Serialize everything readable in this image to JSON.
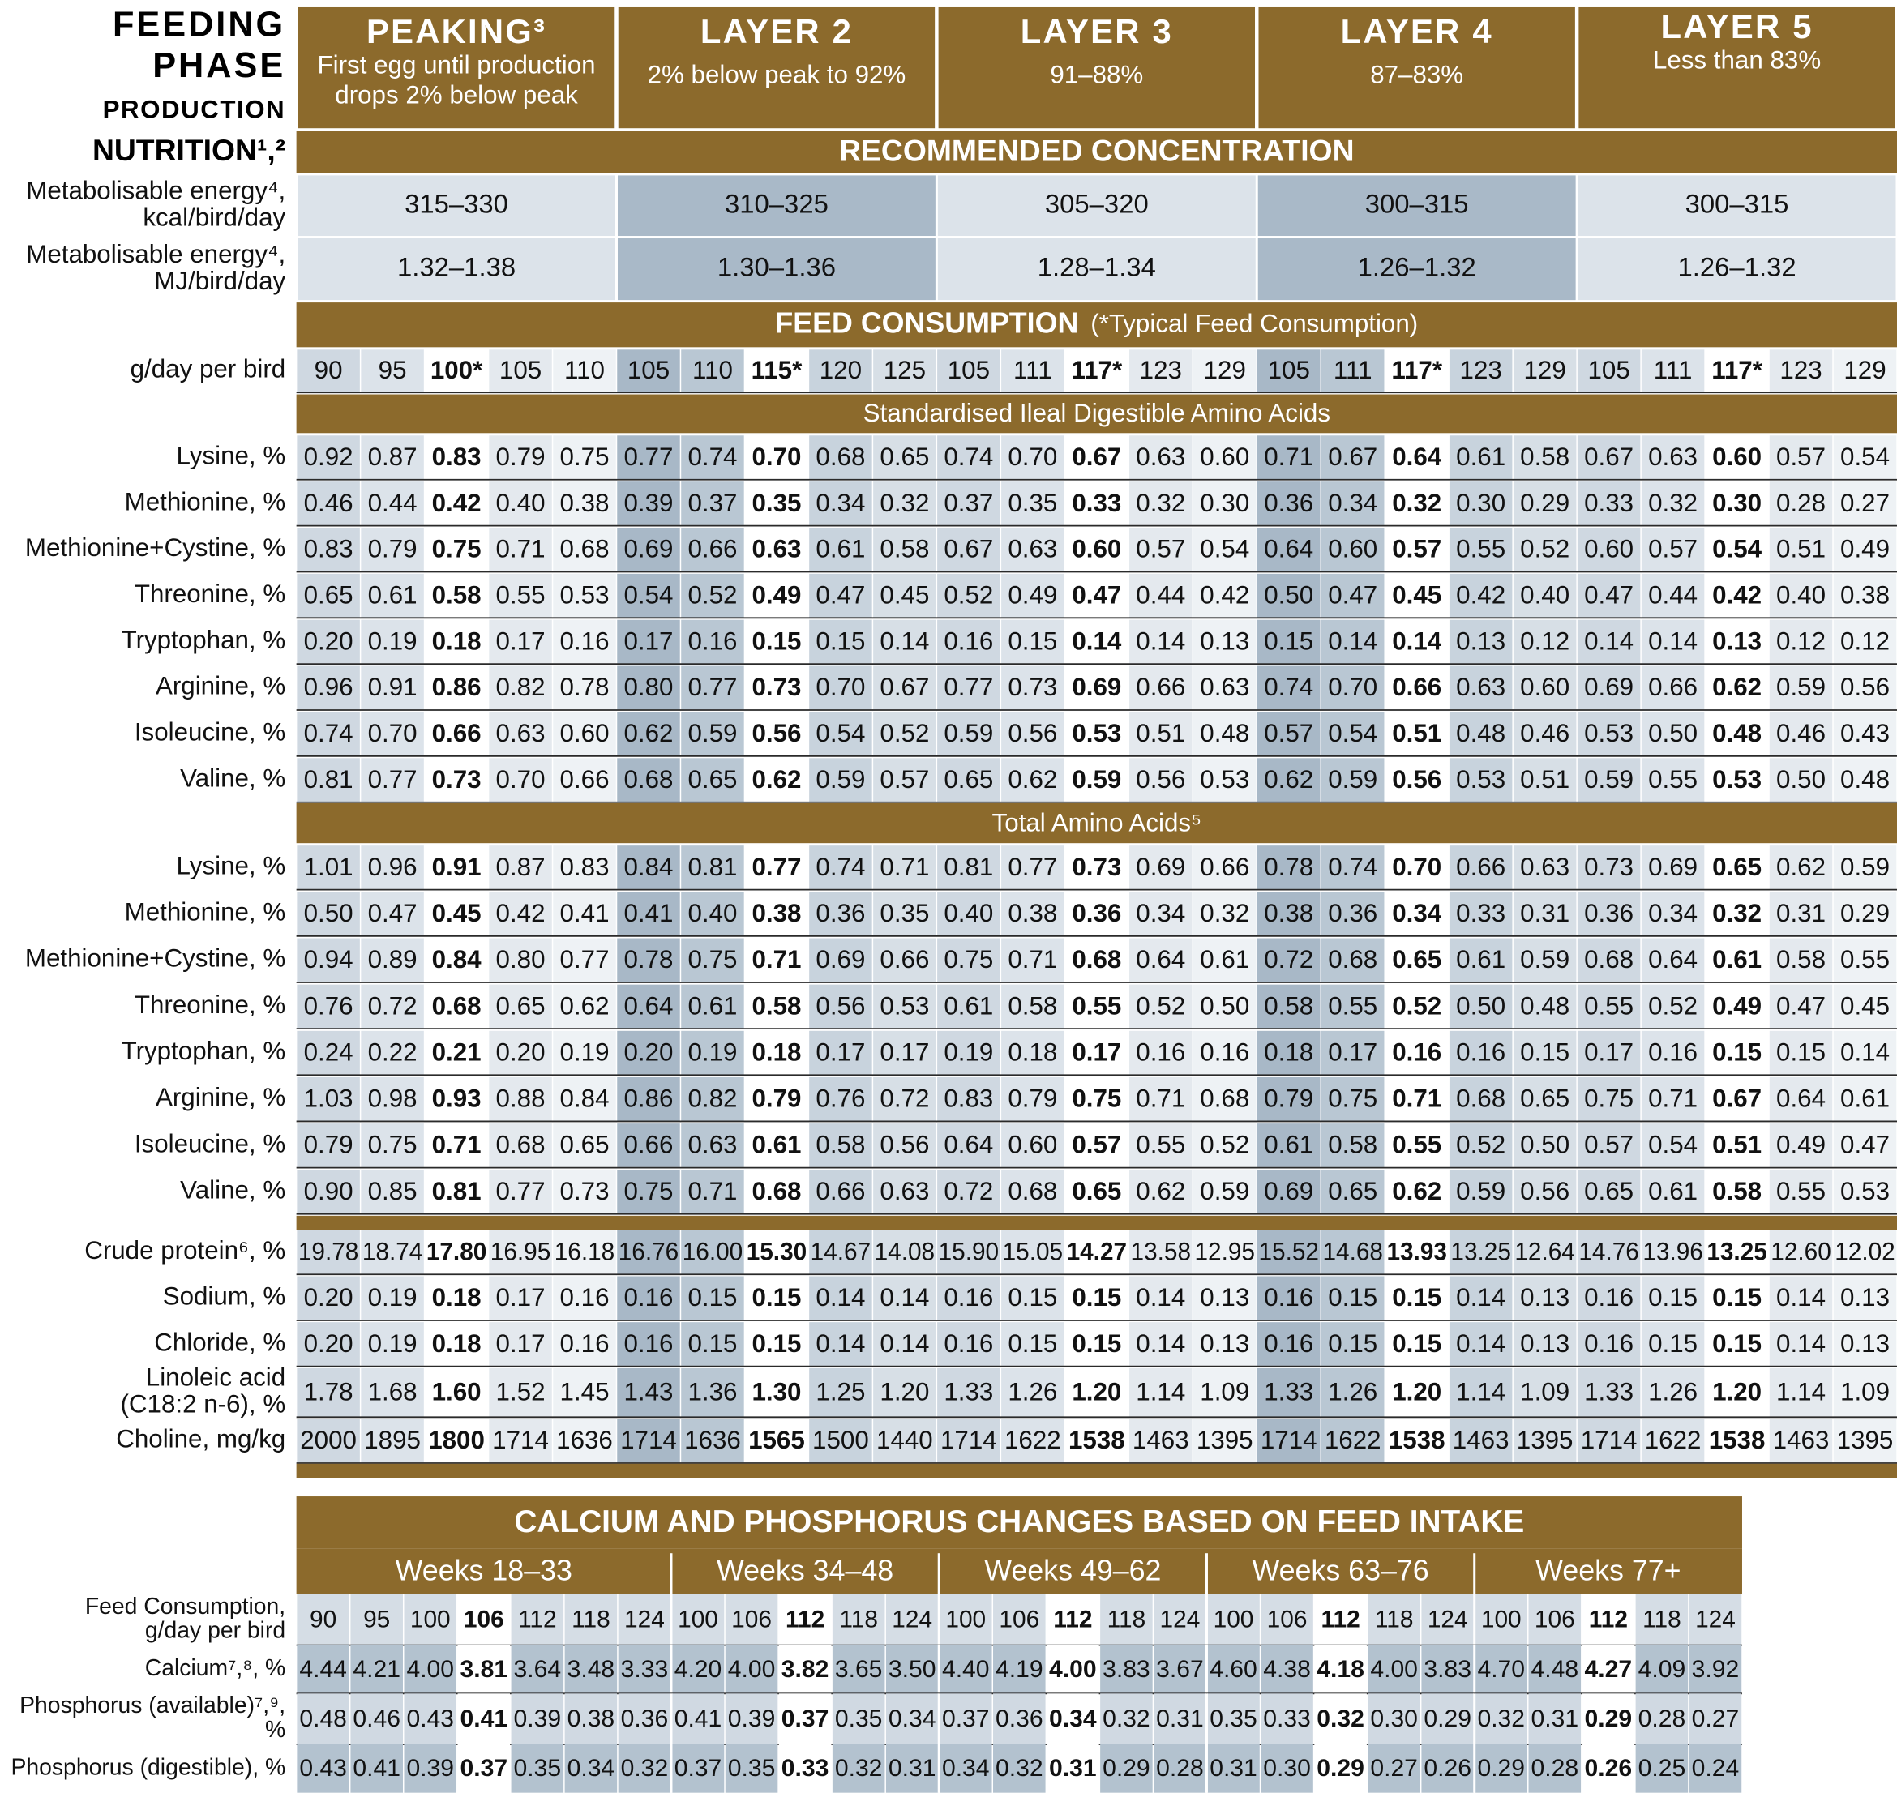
{
  "header": {
    "feeding_phase": [
      "FEEDING",
      "PHASE"
    ],
    "production": "PRODUCTION",
    "nutrition": "NUTRITION¹,²",
    "phases": [
      {
        "title": "PEAKING³",
        "subtitle": [
          "First egg until production",
          "drops 2% below peak"
        ]
      },
      {
        "title": "LAYER 2",
        "subtitle": [
          "2% below peak to 92%"
        ]
      },
      {
        "title": "LAYER 3",
        "subtitle": [
          "91–88%"
        ]
      },
      {
        "title": "LAYER 4",
        "subtitle": [
          "87–83%"
        ]
      },
      {
        "title": "LAYER 5",
        "subtitle": [
          "Less than 83%"
        ]
      }
    ]
  },
  "recommended": "RECOMMENDED CONCENTRATION",
  "energy": [
    {
      "label": [
        "Metabolisable energy⁴,",
        "kcal/bird/day"
      ],
      "values": [
        "315–330",
        "310–325",
        "305–320",
        "300–315",
        "300–315"
      ]
    },
    {
      "label": [
        "Metabolisable energy⁴,",
        "MJ/bird/day"
      ],
      "values": [
        "1.32–1.38",
        "1.30–1.36",
        "1.28–1.34",
        "1.26–1.32",
        "1.26–1.32"
      ]
    }
  ],
  "feed": {
    "title": "FEED CONSUMPTION",
    "note": "(*Typical Feed Consumption)",
    "label": [
      "g/day per bird"
    ],
    "values": [
      "90",
      "95",
      "100*",
      "105",
      "110",
      "105",
      "110",
      "115*",
      "120",
      "125",
      "105",
      "111",
      "117*",
      "123",
      "129",
      "105",
      "111",
      "117*",
      "123",
      "129",
      "105",
      "111",
      "117*",
      "123",
      "129"
    ]
  },
  "sid": {
    "title": "Standardised Ileal Digestible Amino Acids",
    "rows": [
      {
        "label": [
          "Lysine, %"
        ],
        "values": [
          "0.92",
          "0.87",
          "0.83",
          "0.79",
          "0.75",
          "0.77",
          "0.74",
          "0.70",
          "0.68",
          "0.65",
          "0.74",
          "0.70",
          "0.67",
          "0.63",
          "0.60",
          "0.71",
          "0.67",
          "0.64",
          "0.61",
          "0.58",
          "0.67",
          "0.63",
          "0.60",
          "0.57",
          "0.54"
        ]
      },
      {
        "label": [
          "Methionine, %"
        ],
        "values": [
          "0.46",
          "0.44",
          "0.42",
          "0.40",
          "0.38",
          "0.39",
          "0.37",
          "0.35",
          "0.34",
          "0.32",
          "0.37",
          "0.35",
          "0.33",
          "0.32",
          "0.30",
          "0.36",
          "0.34",
          "0.32",
          "0.30",
          "0.29",
          "0.33",
          "0.32",
          "0.30",
          "0.28",
          "0.27"
        ]
      },
      {
        "label": [
          "Methionine+Cystine, %"
        ],
        "values": [
          "0.83",
          "0.79",
          "0.75",
          "0.71",
          "0.68",
          "0.69",
          "0.66",
          "0.63",
          "0.61",
          "0.58",
          "0.67",
          "0.63",
          "0.60",
          "0.57",
          "0.54",
          "0.64",
          "0.60",
          "0.57",
          "0.55",
          "0.52",
          "0.60",
          "0.57",
          "0.54",
          "0.51",
          "0.49"
        ]
      },
      {
        "label": [
          "Threonine, %"
        ],
        "values": [
          "0.65",
          "0.61",
          "0.58",
          "0.55",
          "0.53",
          "0.54",
          "0.52",
          "0.49",
          "0.47",
          "0.45",
          "0.52",
          "0.49",
          "0.47",
          "0.44",
          "0.42",
          "0.50",
          "0.47",
          "0.45",
          "0.42",
          "0.40",
          "0.47",
          "0.44",
          "0.42",
          "0.40",
          "0.38"
        ]
      },
      {
        "label": [
          "Tryptophan, %"
        ],
        "values": [
          "0.20",
          "0.19",
          "0.18",
          "0.17",
          "0.16",
          "0.17",
          "0.16",
          "0.15",
          "0.15",
          "0.14",
          "0.16",
          "0.15",
          "0.14",
          "0.14",
          "0.13",
          "0.15",
          "0.14",
          "0.14",
          "0.13",
          "0.12",
          "0.14",
          "0.14",
          "0.13",
          "0.12",
          "0.12"
        ]
      },
      {
        "label": [
          "Arginine, %"
        ],
        "values": [
          "0.96",
          "0.91",
          "0.86",
          "0.82",
          "0.78",
          "0.80",
          "0.77",
          "0.73",
          "0.70",
          "0.67",
          "0.77",
          "0.73",
          "0.69",
          "0.66",
          "0.63",
          "0.74",
          "0.70",
          "0.66",
          "0.63",
          "0.60",
          "0.69",
          "0.66",
          "0.62",
          "0.59",
          "0.56"
        ]
      },
      {
        "label": [
          "Isoleucine, %"
        ],
        "values": [
          "0.74",
          "0.70",
          "0.66",
          "0.63",
          "0.60",
          "0.62",
          "0.59",
          "0.56",
          "0.54",
          "0.52",
          "0.59",
          "0.56",
          "0.53",
          "0.51",
          "0.48",
          "0.57",
          "0.54",
          "0.51",
          "0.48",
          "0.46",
          "0.53",
          "0.50",
          "0.48",
          "0.46",
          "0.43"
        ]
      },
      {
        "label": [
          "Valine, %"
        ],
        "values": [
          "0.81",
          "0.77",
          "0.73",
          "0.70",
          "0.66",
          "0.68",
          "0.65",
          "0.62",
          "0.59",
          "0.57",
          "0.65",
          "0.62",
          "0.59",
          "0.56",
          "0.53",
          "0.62",
          "0.59",
          "0.56",
          "0.53",
          "0.51",
          "0.59",
          "0.55",
          "0.53",
          "0.50",
          "0.48"
        ]
      }
    ]
  },
  "total": {
    "title": "Total Amino Acids⁵",
    "rows": [
      {
        "label": [
          "Lysine, %"
        ],
        "values": [
          "1.01",
          "0.96",
          "0.91",
          "0.87",
          "0.83",
          "0.84",
          "0.81",
          "0.77",
          "0.74",
          "0.71",
          "0.81",
          "0.77",
          "0.73",
          "0.69",
          "0.66",
          "0.78",
          "0.74",
          "0.70",
          "0.66",
          "0.63",
          "0.73",
          "0.69",
          "0.65",
          "0.62",
          "0.59"
        ]
      },
      {
        "label": [
          "Methionine, %"
        ],
        "values": [
          "0.50",
          "0.47",
          "0.45",
          "0.42",
          "0.41",
          "0.41",
          "0.40",
          "0.38",
          "0.36",
          "0.35",
          "0.40",
          "0.38",
          "0.36",
          "0.34",
          "0.32",
          "0.38",
          "0.36",
          "0.34",
          "0.33",
          "0.31",
          "0.36",
          "0.34",
          "0.32",
          "0.31",
          "0.29"
        ]
      },
      {
        "label": [
          "Methionine+Cystine, %"
        ],
        "values": [
          "0.94",
          "0.89",
          "0.84",
          "0.80",
          "0.77",
          "0.78",
          "0.75",
          "0.71",
          "0.69",
          "0.66",
          "0.75",
          "0.71",
          "0.68",
          "0.64",
          "0.61",
          "0.72",
          "0.68",
          "0.65",
          "0.61",
          "0.59",
          "0.68",
          "0.64",
          "0.61",
          "0.58",
          "0.55"
        ]
      },
      {
        "label": [
          "Threonine, %"
        ],
        "values": [
          "0.76",
          "0.72",
          "0.68",
          "0.65",
          "0.62",
          "0.64",
          "0.61",
          "0.58",
          "0.56",
          "0.53",
          "0.61",
          "0.58",
          "0.55",
          "0.52",
          "0.50",
          "0.58",
          "0.55",
          "0.52",
          "0.50",
          "0.48",
          "0.55",
          "0.52",
          "0.49",
          "0.47",
          "0.45"
        ]
      },
      {
        "label": [
          "Tryptophan, %"
        ],
        "values": [
          "0.24",
          "0.22",
          "0.21",
          "0.20",
          "0.19",
          "0.20",
          "0.19",
          "0.18",
          "0.17",
          "0.17",
          "0.19",
          "0.18",
          "0.17",
          "0.16",
          "0.16",
          "0.18",
          "0.17",
          "0.16",
          "0.16",
          "0.15",
          "0.17",
          "0.16",
          "0.15",
          "0.15",
          "0.14"
        ]
      },
      {
        "label": [
          "Arginine, %"
        ],
        "values": [
          "1.03",
          "0.98",
          "0.93",
          "0.88",
          "0.84",
          "0.86",
          "0.82",
          "0.79",
          "0.76",
          "0.72",
          "0.83",
          "0.79",
          "0.75",
          "0.71",
          "0.68",
          "0.79",
          "0.75",
          "0.71",
          "0.68",
          "0.65",
          "0.75",
          "0.71",
          "0.67",
          "0.64",
          "0.61"
        ]
      },
      {
        "label": [
          "Isoleucine, %"
        ],
        "values": [
          "0.79",
          "0.75",
          "0.71",
          "0.68",
          "0.65",
          "0.66",
          "0.63",
          "0.61",
          "0.58",
          "0.56",
          "0.64",
          "0.60",
          "0.57",
          "0.55",
          "0.52",
          "0.61",
          "0.58",
          "0.55",
          "0.52",
          "0.50",
          "0.57",
          "0.54",
          "0.51",
          "0.49",
          "0.47"
        ]
      },
      {
        "label": [
          "Valine, %"
        ],
        "values": [
          "0.90",
          "0.85",
          "0.81",
          "0.77",
          "0.73",
          "0.75",
          "0.71",
          "0.68",
          "0.66",
          "0.63",
          "0.72",
          "0.68",
          "0.65",
          "0.62",
          "0.59",
          "0.69",
          "0.65",
          "0.62",
          "0.59",
          "0.56",
          "0.65",
          "0.61",
          "0.58",
          "0.55",
          "0.53"
        ]
      }
    ]
  },
  "other": [
    {
      "label": [
        "Crude protein⁶, %"
      ],
      "values": [
        "19.78",
        "18.74",
        "17.80",
        "16.95",
        "16.18",
        "16.76",
        "16.00",
        "15.30",
        "14.67",
        "14.08",
        "15.90",
        "15.05",
        "14.27",
        "13.58",
        "12.95",
        "15.52",
        "14.68",
        "13.93",
        "13.25",
        "12.64",
        "14.76",
        "13.96",
        "13.25",
        "12.60",
        "12.02"
      ]
    },
    {
      "label": [
        "Sodium, %"
      ],
      "values": [
        "0.20",
        "0.19",
        "0.18",
        "0.17",
        "0.16",
        "0.16",
        "0.15",
        "0.15",
        "0.14",
        "0.14",
        "0.16",
        "0.15",
        "0.15",
        "0.14",
        "0.13",
        "0.16",
        "0.15",
        "0.15",
        "0.14",
        "0.13",
        "0.16",
        "0.15",
        "0.15",
        "0.14",
        "0.13"
      ]
    },
    {
      "label": [
        "Chloride, %"
      ],
      "values": [
        "0.20",
        "0.19",
        "0.18",
        "0.17",
        "0.16",
        "0.16",
        "0.15",
        "0.15",
        "0.14",
        "0.14",
        "0.16",
        "0.15",
        "0.15",
        "0.14",
        "0.13",
        "0.16",
        "0.15",
        "0.15",
        "0.14",
        "0.13",
        "0.16",
        "0.15",
        "0.15",
        "0.14",
        "0.13"
      ]
    },
    {
      "label": [
        "Linoleic acid",
        "(C18:2 n-6), %"
      ],
      "values": [
        "1.78",
        "1.68",
        "1.60",
        "1.52",
        "1.45",
        "1.43",
        "1.36",
        "1.30",
        "1.25",
        "1.20",
        "1.33",
        "1.26",
        "1.20",
        "1.14",
        "1.09",
        "1.33",
        "1.26",
        "1.20",
        "1.14",
        "1.09",
        "1.33",
        "1.26",
        "1.20",
        "1.14",
        "1.09"
      ]
    },
    {
      "label": [
        "Choline, mg/kg"
      ],
      "values": [
        "2000",
        "1895",
        "1800",
        "1714",
        "1636",
        "1714",
        "1636",
        "1565",
        "1500",
        "1440",
        "1714",
        "1622",
        "1538",
        "1463",
        "1395",
        "1714",
        "1622",
        "1538",
        "1463",
        "1395",
        "1714",
        "1622",
        "1538",
        "1463",
        "1395"
      ]
    }
  ],
  "calcium": {
    "title": "CALCIUM AND PHOSPHORUS CHANGES BASED ON FEED INTAKE",
    "periods": [
      "Weeks 18–33",
      "Weeks 34–48",
      "Weeks 49–62",
      "Weeks 63–76",
      "Weeks 77+"
    ],
    "rows": [
      {
        "label": [
          "Feed Consumption,",
          "g/day per bird"
        ],
        "values": [
          "90",
          "95",
          "100",
          "106",
          "112",
          "118",
          "124",
          "100",
          "106",
          "112",
          "118",
          "124",
          "100",
          "106",
          "112",
          "118",
          "124",
          "100",
          "106",
          "112",
          "118",
          "124",
          "100",
          "106",
          "112",
          "118",
          "124"
        ]
      },
      {
        "label": [
          "Calcium⁷,⁸, %"
        ],
        "values": [
          "4.44",
          "4.21",
          "4.00",
          "3.81",
          "3.64",
          "3.48",
          "3.33",
          "4.20",
          "4.00",
          "3.82",
          "3.65",
          "3.50",
          "4.40",
          "4.19",
          "4.00",
          "3.83",
          "3.67",
          "4.60",
          "4.38",
          "4.18",
          "4.00",
          "3.83",
          "4.70",
          "4.48",
          "4.27",
          "4.09",
          "3.92"
        ]
      },
      {
        "label": [
          "Phosphorus (available)⁷,⁹,",
          "%"
        ],
        "values": [
          "0.48",
          "0.46",
          "0.43",
          "0.41",
          "0.39",
          "0.38",
          "0.36",
          "0.41",
          "0.39",
          "0.37",
          "0.35",
          "0.34",
          "0.37",
          "0.36",
          "0.34",
          "0.32",
          "0.31",
          "0.35",
          "0.33",
          "0.32",
          "0.30",
          "0.29",
          "0.32",
          "0.31",
          "0.29",
          "0.28",
          "0.27"
        ]
      },
      {
        "label": [
          "Phosphorus (digestible), %"
        ],
        "values": [
          "0.43",
          "0.41",
          "0.39",
          "0.37",
          "0.35",
          "0.34",
          "0.32",
          "0.37",
          "0.35",
          "0.33",
          "0.32",
          "0.31",
          "0.34",
          "0.32",
          "0.31",
          "0.29",
          "0.28",
          "0.31",
          "0.30",
          "0.29",
          "0.27",
          "0.26",
          "0.29",
          "0.28",
          "0.26",
          "0.25",
          "0.24"
        ]
      }
    ]
  }
}
